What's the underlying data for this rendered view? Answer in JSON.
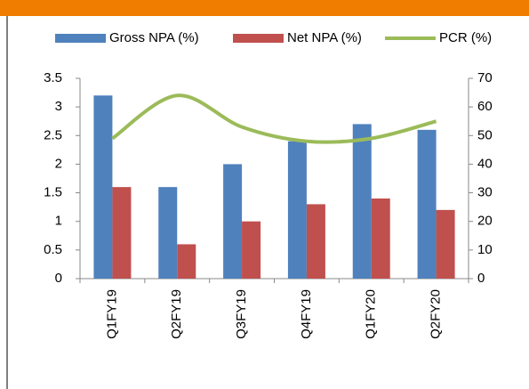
{
  "chart_data": {
    "type": "bar",
    "categories": [
      "Q1FY19",
      "Q2FY19",
      "Q3FY19",
      "Q4FY19",
      "Q1FY20",
      "Q2FY20"
    ],
    "series": [
      {
        "name": "Gross NPA (%)",
        "color": "#4f81bd",
        "values": [
          3.2,
          1.6,
          2.0,
          2.4,
          2.7,
          2.6
        ]
      },
      {
        "name": "Net NPA (%)",
        "color": "#c0504d",
        "values": [
          1.6,
          0.6,
          1.0,
          1.3,
          1.4,
          1.2
        ]
      },
      {
        "name": "PCR (%)",
        "color": "#9bbb59",
        "type": "line",
        "axis": "y2",
        "values": [
          49,
          64,
          53,
          48,
          49,
          55
        ]
      }
    ],
    "ylim": [
      0,
      3.5
    ],
    "yticks": [
      0,
      0.5,
      1,
      1.5,
      2,
      2.5,
      3,
      3.5
    ],
    "y2lim": [
      0,
      70
    ],
    "y2ticks": [
      0,
      10,
      20,
      30,
      40,
      50,
      60,
      70
    ],
    "legend": "top"
  }
}
